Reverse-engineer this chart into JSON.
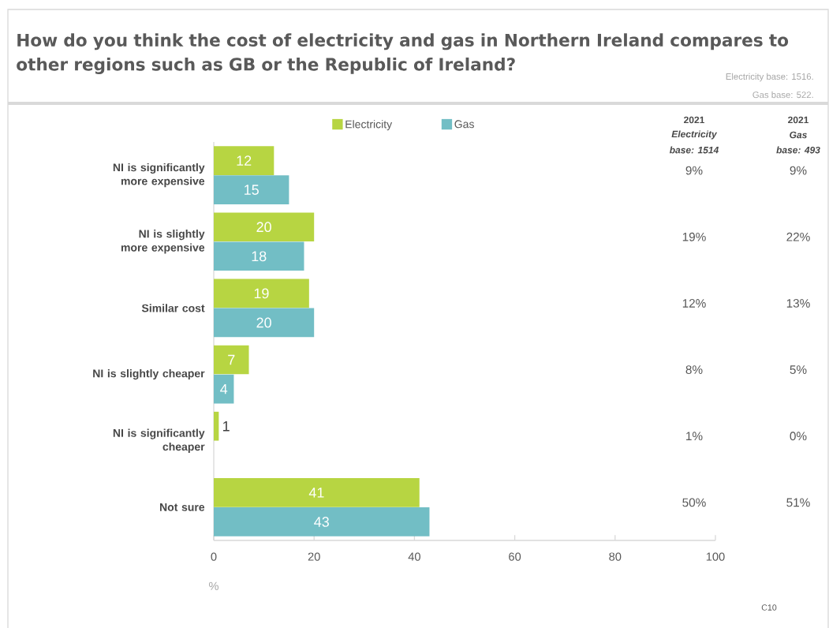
{
  "chart_data": {
    "type": "bar",
    "orientation": "horizontal",
    "title": "How do you think the cost of electricity and gas in Northern Ireland compares to other regions such as GB or the Republic of Ireland?",
    "xlabel": "%",
    "categories": [
      "NI is significantly more expensive",
      "NI is slightly more expensive",
      "Similar cost",
      "NI is slightly cheaper",
      "NI is significantly cheaper",
      "Not sure"
    ],
    "series": [
      {
        "name": "Electricity",
        "color": "#b7d542",
        "values": [
          12,
          20,
          19,
          7,
          1,
          41
        ],
        "value_labels": [
          "12",
          "20",
          "19",
          "7",
          "1",
          "41"
        ]
      },
      {
        "name": "Gas",
        "color": "#72bec5",
        "values": [
          15,
          18,
          20,
          4,
          0,
          43
        ],
        "value_labels": [
          "15",
          "18",
          "20",
          "4",
          null,
          "43"
        ]
      }
    ],
    "xlim": [
      0,
      100
    ],
    "xticks": [
      0,
      20,
      40,
      60,
      80,
      100
    ],
    "legend": "top",
    "grid": false,
    "annotations": [
      "Electricity base: 1516.",
      "Gas base: 522.",
      "2021",
      "Electricity",
      "base: 1514",
      "2021",
      "Gas",
      "base: 493",
      "9%",
      "19%",
      "12%",
      "8%",
      "1%",
      "50%",
      "9%",
      "22%",
      "13%",
      "5%",
      "0%",
      "51%",
      "C10"
    ]
  }
}
